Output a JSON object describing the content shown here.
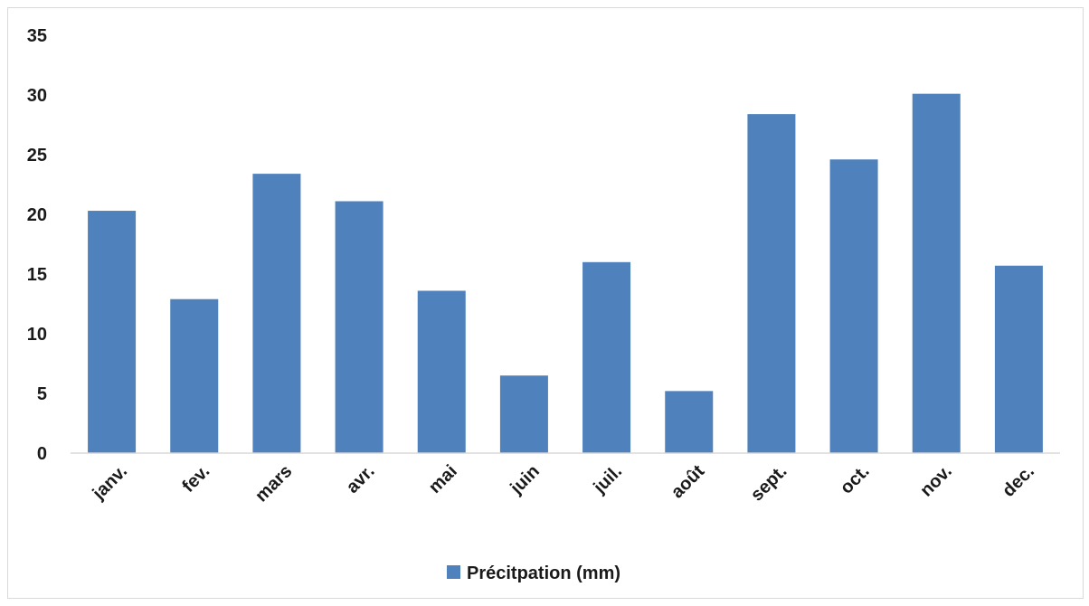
{
  "chart_data": {
    "type": "bar",
    "categories": [
      "janv.",
      "fev.",
      "mars",
      "avr.",
      "mai",
      "juin",
      "juil.",
      "août",
      "sept.",
      "oct.",
      "nov.",
      "dec."
    ],
    "series": [
      {
        "name": "Précitpation (mm)",
        "values": [
          20.3,
          12.9,
          23.4,
          21.1,
          13.6,
          6.5,
          16.0,
          5.2,
          28.4,
          24.6,
          30.1,
          15.7
        ],
        "color": "#4f81bd"
      }
    ],
    "title": "",
    "xlabel": "",
    "ylabel": "",
    "ylim": [
      0,
      35
    ],
    "yticks": [
      0,
      5,
      10,
      15,
      20,
      25,
      30,
      35
    ],
    "grid": false,
    "legend_position": "bottom"
  }
}
